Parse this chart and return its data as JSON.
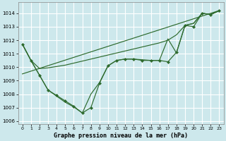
{
  "background_color": "#cde8ec",
  "grid_color": "#ffffff",
  "line_color": "#2d6a2d",
  "title": "Graphe pression niveau de la mer (hPa)",
  "xlim": [
    -0.5,
    23.5
  ],
  "ylim": [
    1005.8,
    1014.8
  ],
  "yticks": [
    1006,
    1007,
    1008,
    1009,
    1010,
    1011,
    1012,
    1013,
    1014
  ],
  "xticks": [
    0,
    1,
    2,
    3,
    4,
    5,
    6,
    7,
    8,
    9,
    10,
    11,
    12,
    13,
    14,
    15,
    16,
    17,
    18,
    19,
    20,
    21,
    22,
    23
  ],
  "line1_x": [
    0,
    1,
    2,
    3,
    4,
    5,
    6,
    7,
    8,
    9,
    10,
    11,
    12,
    13,
    14,
    15,
    16,
    17,
    18,
    19,
    20,
    21,
    22,
    23
  ],
  "line1_y": [
    1011.7,
    1010.5,
    1009.4,
    1008.3,
    1007.9,
    1007.5,
    1007.1,
    1006.6,
    1007.0,
    1008.8,
    1010.1,
    1010.5,
    1010.6,
    1010.6,
    1010.5,
    1010.5,
    1010.5,
    1010.4,
    1011.1,
    1013.1,
    1013.0,
    1014.0,
    1013.9,
    1014.2
  ],
  "line2_x": [
    0,
    1,
    2,
    3,
    4,
    5,
    6,
    7,
    8,
    9,
    10,
    11,
    12,
    13,
    14,
    15,
    16,
    17,
    18,
    19,
    20,
    21,
    22,
    23
  ],
  "line2_y": [
    1011.7,
    1010.5,
    1009.9,
    1009.95,
    1010.05,
    1010.15,
    1010.3,
    1010.45,
    1010.6,
    1010.75,
    1010.9,
    1011.05,
    1011.2,
    1011.35,
    1011.5,
    1011.65,
    1011.8,
    1012.0,
    1012.4,
    1013.1,
    1013.25,
    1014.0,
    1013.9,
    1014.2
  ],
  "line3_x": [
    0,
    1,
    2,
    3,
    4,
    5,
    6,
    7,
    8,
    9,
    10,
    11,
    12,
    13,
    14,
    15,
    16,
    17,
    18,
    19,
    20,
    21,
    22,
    23
  ],
  "line3_y": [
    1011.7,
    1010.5,
    1009.4,
    1008.3,
    1007.85,
    1007.4,
    1007.05,
    1006.6,
    1008.0,
    1008.85,
    1010.1,
    1010.5,
    1010.6,
    1010.6,
    1010.55,
    1010.5,
    1010.5,
    1012.1,
    1011.05,
    1013.1,
    1013.25,
    1014.0,
    1013.9,
    1014.2
  ],
  "line4_x": [
    0,
    23
  ],
  "line4_y": [
    1009.5,
    1014.2
  ]
}
